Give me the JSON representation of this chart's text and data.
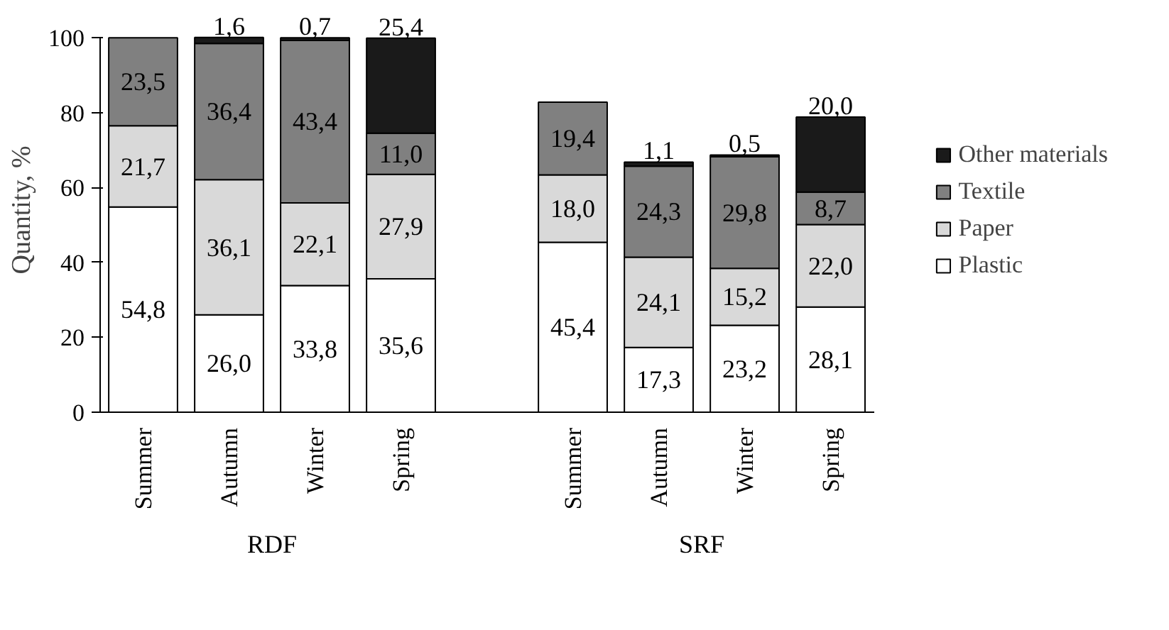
{
  "chart_data": {
    "type": "bar",
    "stacked": true,
    "ylabel": "Quantity, %",
    "categories": [
      "Summer",
      "Autumn",
      "Winter",
      "Spring",
      null,
      "Summer",
      "Autumn",
      "Winter",
      "Spring"
    ],
    "series": [
      {
        "name": "Plastic",
        "color": "#ffffff",
        "values": [
          54.8,
          26.0,
          33.8,
          35.6,
          null,
          45.4,
          17.3,
          23.2,
          28.1
        ],
        "value_labels": [
          "54,8",
          "26,0",
          "33,8",
          "35,6",
          null,
          "45,4",
          "17,3",
          "23,2",
          "28,1"
        ]
      },
      {
        "name": "Paper",
        "color": "#d9d9d9",
        "values": [
          21.7,
          36.1,
          22.1,
          27.9,
          null,
          18.0,
          24.1,
          15.2,
          22.0
        ],
        "value_labels": [
          "21,7",
          "36,1",
          "22,1",
          "27,9",
          null,
          "18,0",
          "24,1",
          "15,2",
          "22,0"
        ]
      },
      {
        "name": "Textile",
        "color": "#808080",
        "values": [
          23.5,
          36.4,
          43.4,
          11.0,
          null,
          19.4,
          24.3,
          29.8,
          8.7
        ],
        "value_labels": [
          "23,5",
          "36,4",
          "43,4",
          "11,0",
          null,
          "19,4",
          "24,3",
          "29,8",
          "8,7"
        ]
      },
      {
        "name": "Other materials",
        "color": "#1a1a1a",
        "values": [
          null,
          1.6,
          0.7,
          25.4,
          null,
          null,
          1.1,
          0.5,
          20.0
        ],
        "value_labels": [
          null,
          "1,6",
          "0,7",
          "25,4",
          null,
          null,
          "1,1",
          "0,5",
          "20,0"
        ]
      }
    ],
    "ylim": [
      0,
      100
    ],
    "yticks": [
      0,
      20,
      40,
      60,
      80,
      100
    ],
    "grid": false,
    "legend": "right",
    "annotations": [
      "RDF",
      "SRF"
    ]
  }
}
